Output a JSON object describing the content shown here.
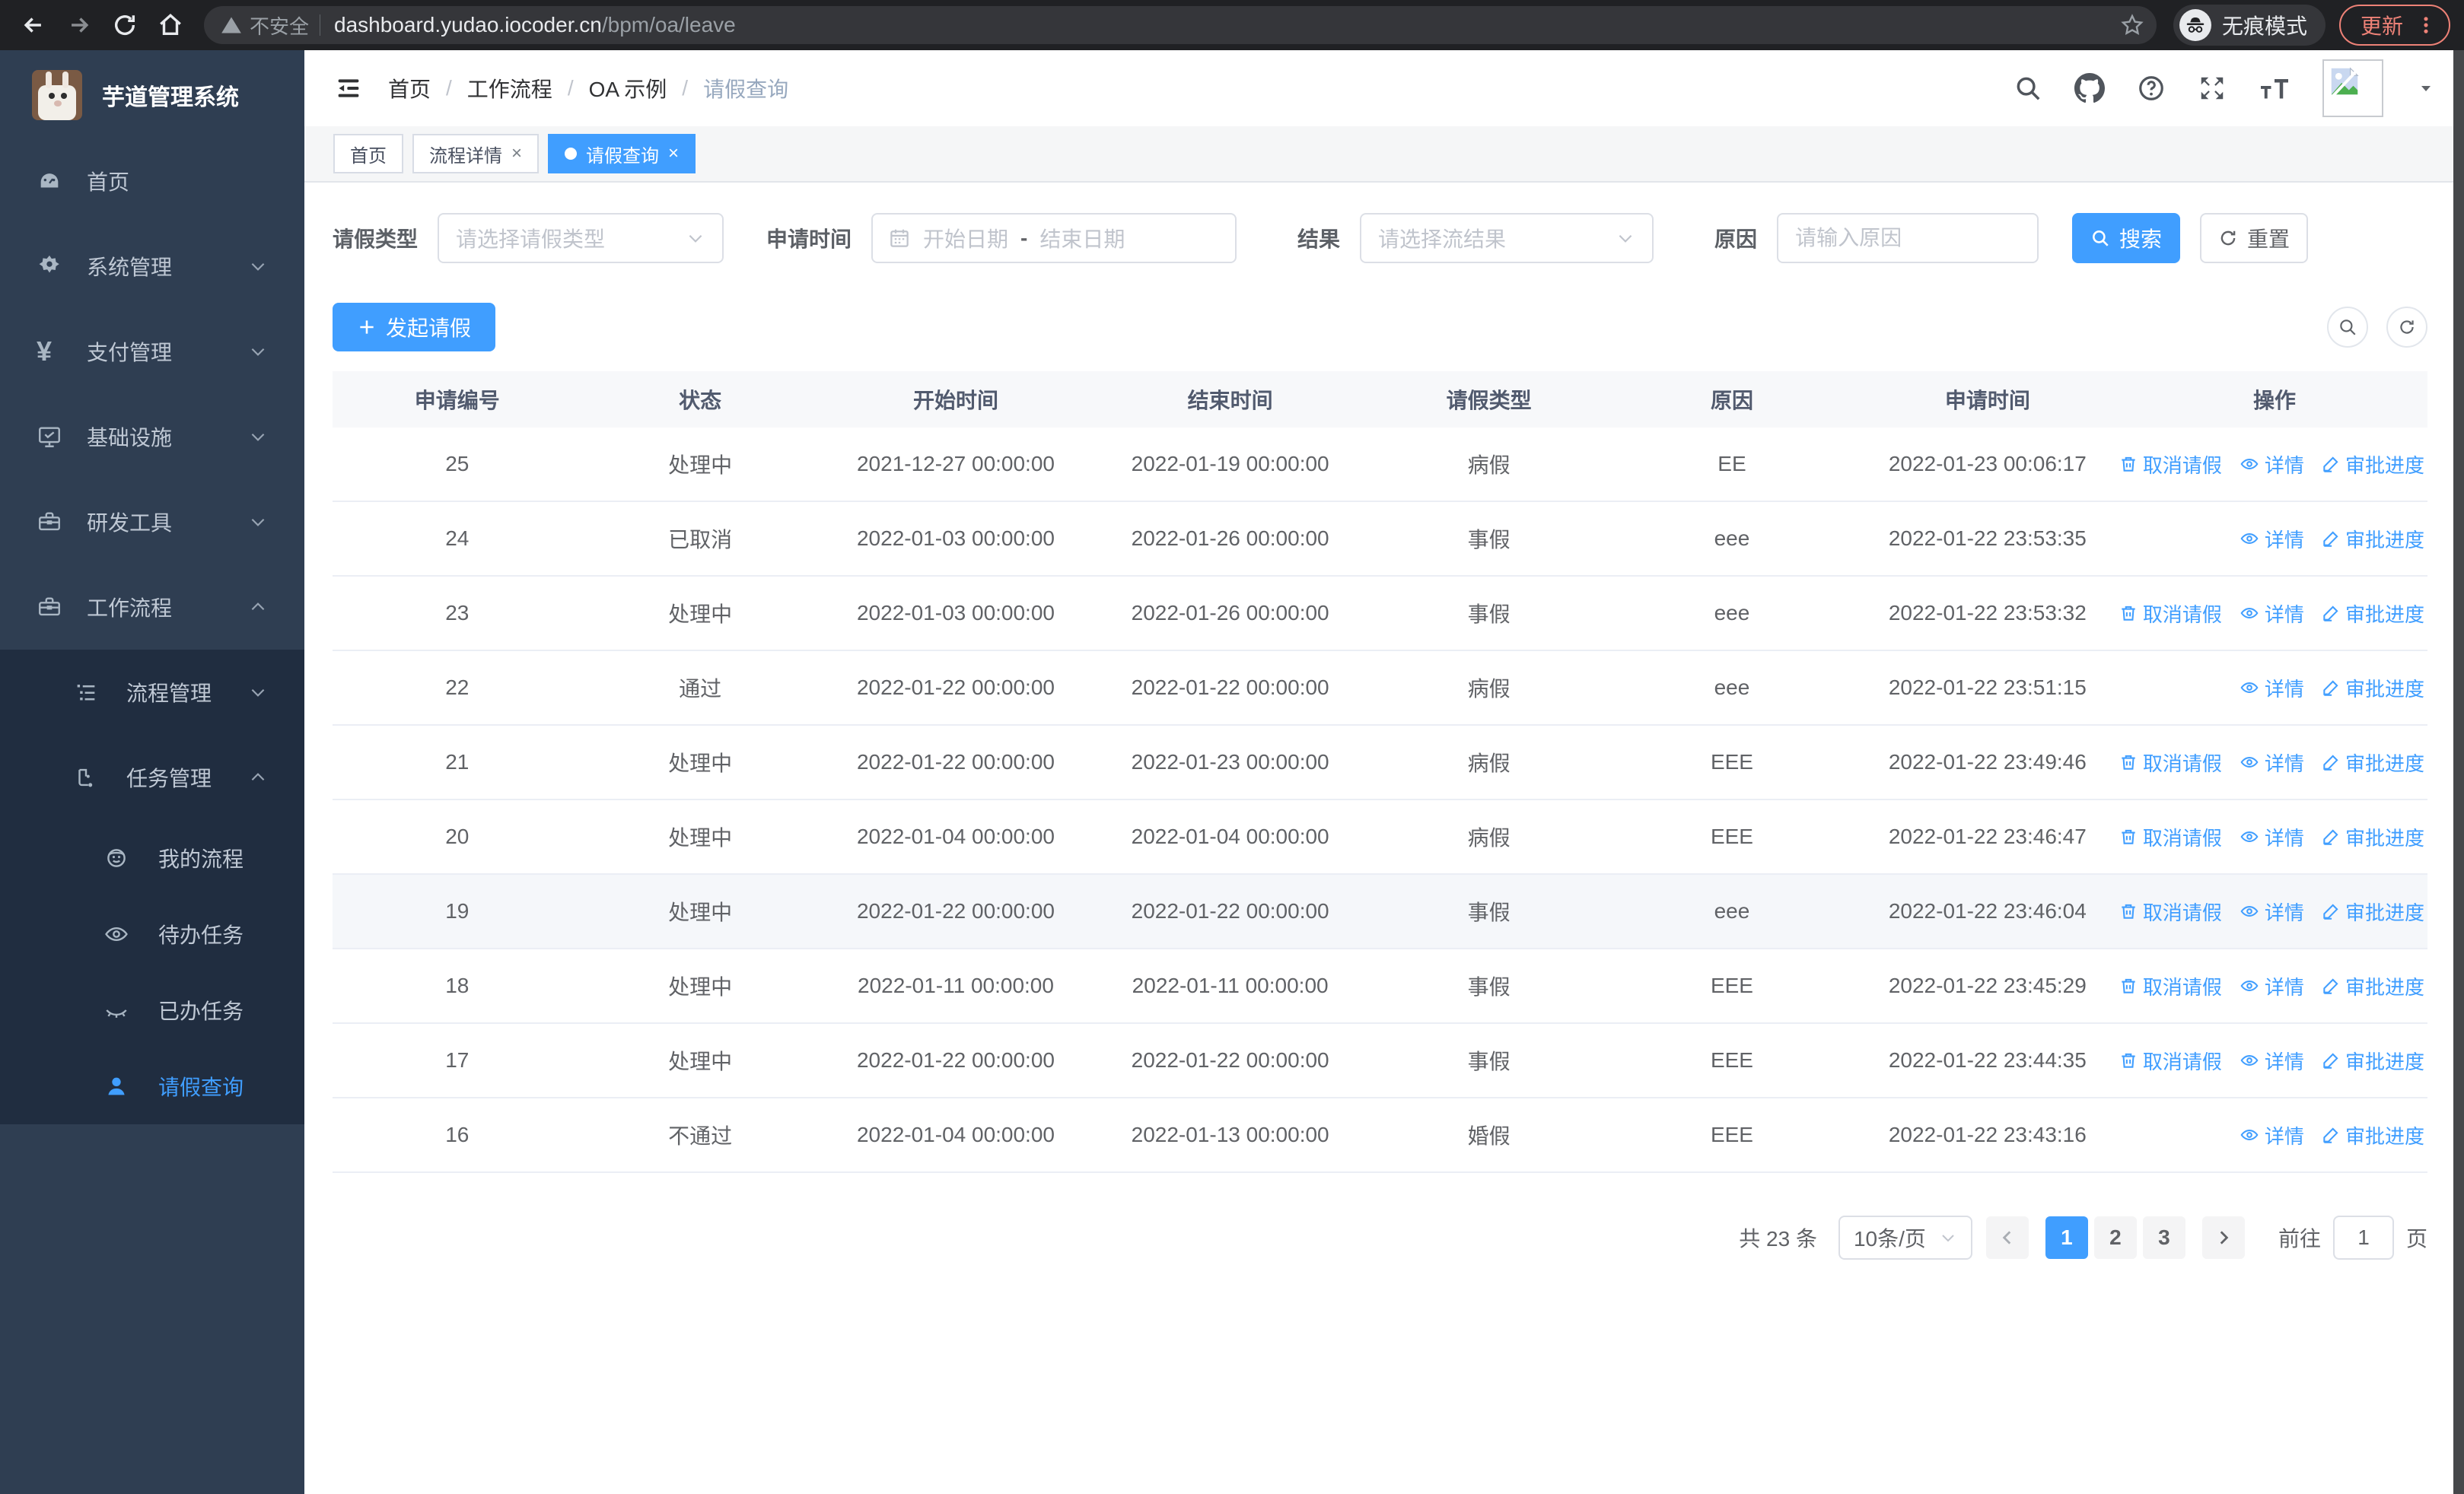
{
  "browser": {
    "security_label": "不安全",
    "url_host": "dashboard.yudao.iocoder.cn",
    "url_path": "/bpm/oa/leave",
    "incognito_label": "无痕模式",
    "update_label": "更新"
  },
  "sidebar": {
    "title": "芋道管理系统",
    "items": [
      {
        "name": "home",
        "label": "首页",
        "icon": "dashboard",
        "level": 1
      },
      {
        "name": "system-mgmt",
        "label": "系统管理",
        "icon": "gear",
        "level": 1,
        "chevron": "down"
      },
      {
        "name": "payment-mgmt",
        "label": "支付管理",
        "icon": "yen",
        "level": 1,
        "chevron": "down"
      },
      {
        "name": "infrastructure",
        "label": "基础设施",
        "icon": "infra",
        "level": 1,
        "chevron": "down"
      },
      {
        "name": "dev-tools",
        "label": "研发工具",
        "icon": "toolbox",
        "level": 1,
        "chevron": "down"
      },
      {
        "name": "workflow",
        "label": "工作流程",
        "icon": "toolbox",
        "level": 1,
        "chevron": "up"
      },
      {
        "name": "process-mgmt",
        "label": "流程管理",
        "icon": "process",
        "level": 2,
        "chevron": "down",
        "dark": true
      },
      {
        "name": "task-mgmt",
        "label": "任务管理",
        "icon": "taskflow",
        "level": 2,
        "chevron": "up",
        "dark": true
      },
      {
        "name": "my-process",
        "label": "我的流程",
        "icon": "robot",
        "level": 3,
        "dark": true
      },
      {
        "name": "todo-tasks",
        "label": "待办任务",
        "icon": "eye",
        "level": 3,
        "dark": true
      },
      {
        "name": "done-tasks",
        "label": "已办任务",
        "icon": "eye-closed",
        "level": 3,
        "dark": true
      },
      {
        "name": "leave-query",
        "label": "请假查询",
        "icon": "user",
        "level": 3,
        "dark": true,
        "active": true
      }
    ]
  },
  "header": {
    "breadcrumb": [
      "首页",
      "工作流程",
      "OA 示例",
      "请假查询"
    ]
  },
  "tabs": [
    {
      "label": "首页",
      "closable": false,
      "active": false
    },
    {
      "label": "流程详情",
      "closable": true,
      "active": false
    },
    {
      "label": "请假查询",
      "closable": true,
      "active": true
    }
  ],
  "filters": {
    "type_label": "请假类型",
    "type_placeholder": "请选择请假类型",
    "time_label": "申请时间",
    "start_placeholder": "开始日期",
    "range_separator": "-",
    "end_placeholder": "结束日期",
    "result_label": "结果",
    "result_placeholder": "请选择流结果",
    "reason_label": "原因",
    "reason_placeholder": "请输入原因",
    "search_label": "搜索",
    "reset_label": "重置"
  },
  "toolbar": {
    "create_label": "发起请假"
  },
  "table": {
    "columns": [
      "申请编号",
      "状态",
      "开始时间",
      "结束时间",
      "请假类型",
      "原因",
      "申请时间",
      "操作"
    ],
    "action_labels": {
      "cancel": "取消请假",
      "detail": "详情",
      "progress": "审批进度"
    },
    "rows": [
      {
        "id": "25",
        "status": "处理中",
        "start": "2021-12-27 00:00:00",
        "end": "2022-01-19 00:00:00",
        "type": "病假",
        "reason": "EE",
        "applied": "2022-01-23 00:06:17",
        "actions": [
          "cancel",
          "detail",
          "progress"
        ]
      },
      {
        "id": "24",
        "status": "已取消",
        "start": "2022-01-03 00:00:00",
        "end": "2022-01-26 00:00:00",
        "type": "事假",
        "reason": "eee",
        "applied": "2022-01-22 23:53:35",
        "actions": [
          "detail",
          "progress"
        ]
      },
      {
        "id": "23",
        "status": "处理中",
        "start": "2022-01-03 00:00:00",
        "end": "2022-01-26 00:00:00",
        "type": "事假",
        "reason": "eee",
        "applied": "2022-01-22 23:53:32",
        "actions": [
          "cancel",
          "detail",
          "progress"
        ]
      },
      {
        "id": "22",
        "status": "通过",
        "start": "2022-01-22 00:00:00",
        "end": "2022-01-22 00:00:00",
        "type": "病假",
        "reason": "eee",
        "applied": "2022-01-22 23:51:15",
        "actions": [
          "detail",
          "progress"
        ]
      },
      {
        "id": "21",
        "status": "处理中",
        "start": "2022-01-22 00:00:00",
        "end": "2022-01-23 00:00:00",
        "type": "病假",
        "reason": "EEE",
        "applied": "2022-01-22 23:49:46",
        "actions": [
          "cancel",
          "detail",
          "progress"
        ]
      },
      {
        "id": "20",
        "status": "处理中",
        "start": "2022-01-04 00:00:00",
        "end": "2022-01-04 00:00:00",
        "type": "病假",
        "reason": "EEE",
        "applied": "2022-01-22 23:46:47",
        "actions": [
          "cancel",
          "detail",
          "progress"
        ]
      },
      {
        "id": "19",
        "status": "处理中",
        "start": "2022-01-22 00:00:00",
        "end": "2022-01-22 00:00:00",
        "type": "事假",
        "reason": "eee",
        "applied": "2022-01-22 23:46:04",
        "actions": [
          "cancel",
          "detail",
          "progress"
        ],
        "highlight": true
      },
      {
        "id": "18",
        "status": "处理中",
        "start": "2022-01-11 00:00:00",
        "end": "2022-01-11 00:00:00",
        "type": "事假",
        "reason": "EEE",
        "applied": "2022-01-22 23:45:29",
        "actions": [
          "cancel",
          "detail",
          "progress"
        ]
      },
      {
        "id": "17",
        "status": "处理中",
        "start": "2022-01-22 00:00:00",
        "end": "2022-01-22 00:00:00",
        "type": "事假",
        "reason": "EEE",
        "applied": "2022-01-22 23:44:35",
        "actions": [
          "cancel",
          "detail",
          "progress"
        ]
      },
      {
        "id": "16",
        "status": "不通过",
        "start": "2022-01-04 00:00:00",
        "end": "2022-01-13 00:00:00",
        "type": "婚假",
        "reason": "EEE",
        "applied": "2022-01-22 23:43:16",
        "actions": [
          "detail",
          "progress"
        ]
      }
    ]
  },
  "pagination": {
    "total_label": "共 23 条",
    "page_size": "10条/页",
    "pages": [
      {
        "label": "1",
        "active": true
      },
      {
        "label": "2",
        "active": false
      },
      {
        "label": "3",
        "active": false
      }
    ],
    "goto_label": "前往",
    "goto_value": "1",
    "page_suffix": "页"
  },
  "colors": {
    "accent": "#409eff",
    "sidebar_bg": "#2f3e52",
    "sidebar_submenu_bg": "#202d40",
    "chrome_bg": "#202124",
    "update_pill": "#ee8277",
    "table_header_bg": "#f7f8fa",
    "row_highlight": "#f5f7fa"
  }
}
